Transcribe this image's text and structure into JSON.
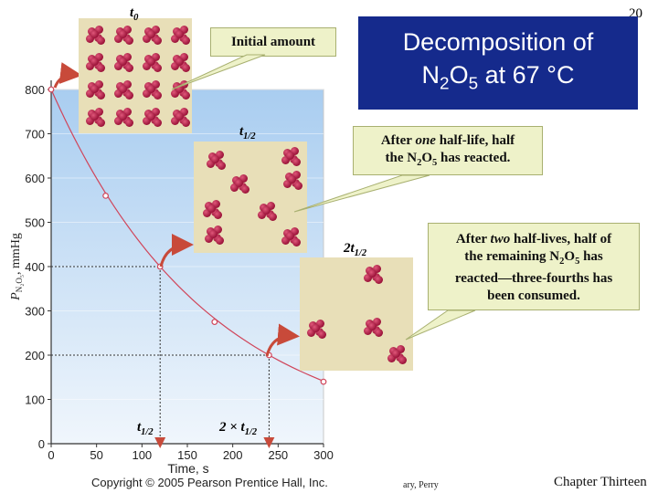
{
  "slide_number": "20",
  "title": {
    "line1": "Decomposition of",
    "line2_prefix": "N",
    "line2_sub1": "2",
    "line2_mid": "O",
    "line2_sub2": "5",
    "line2_suffix": " at 67 °C"
  },
  "callouts": {
    "initial": "Initial amount",
    "half_a": "After ",
    "half_em": "one",
    "half_b": " half-life, half",
    "half_c1": "the N",
    "half_c2": "O",
    "half_c3": " has reacted.",
    "two_a": "After ",
    "two_em": "two",
    "two_b": " half-lives, half of",
    "two_c1": "the remaining N",
    "two_c2": "O",
    "two_c3": " has",
    "two_d": "reacted—three-fourths has",
    "two_e": "been consumed."
  },
  "panel_labels": {
    "t0": "t",
    "t0_sub": "0",
    "t12": "t",
    "t12_sub": "1/2",
    "t212_prefix": "2t",
    "t212_sub": "1/2"
  },
  "axis_annotations": {
    "t12": "t",
    "t12_sub": "1/2",
    "t212": "2 × t",
    "t212_sub": "1/2"
  },
  "footer": {
    "copyright": "Copyright © 2005 Pearson Prentice Hall, Inc.",
    "middle": "ary, Perry",
    "right": "Chapter Thirteen"
  },
  "colors": {
    "title_bg": "#152a8c",
    "curve": "#d0455a",
    "arrow": "#c84a3a",
    "molecule": "#9a1238",
    "panel": "#e8dfb8",
    "plot_bg_top": "#a9cdf0",
    "plot_bg_bottom": "#f0f6fc"
  },
  "molecule_counts": {
    "t0": 16,
    "t12": 8,
    "t212": 4
  },
  "chart_data": {
    "type": "line",
    "xlabel": "Time, s",
    "ylabel_main": "P",
    "ylabel_sub": "N₂O₅",
    "ylabel_unit": ", mmHg",
    "xlim": [
      0,
      300
    ],
    "ylim": [
      0,
      800
    ],
    "x_ticks": [
      0,
      50,
      100,
      150,
      200,
      250,
      300
    ],
    "y_ticks": [
      0,
      100,
      200,
      300,
      400,
      500,
      600,
      700,
      800
    ],
    "series": [
      {
        "x": [
          0,
          60,
          120,
          180,
          240,
          300
        ],
        "y": [
          800,
          560,
          400,
          275,
          200,
          140
        ]
      }
    ],
    "half_life_marks": [
      {
        "x": 120,
        "y": 400
      },
      {
        "x": 240,
        "y": 200
      }
    ]
  }
}
